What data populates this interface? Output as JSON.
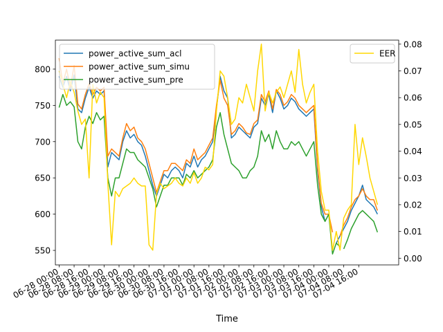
{
  "chart_data": {
    "type": "line",
    "xlabel": "Time",
    "x_ticks": [
      "06-28 00:00",
      "06-28 08:00",
      "06-28 16:00",
      "06-29 00:00",
      "06-29 08:00",
      "06-29 16:00",
      "06-30 00:00",
      "06-30 08:00",
      "06-30 16:00",
      "07-01 00:00",
      "07-01 08:00",
      "07-01 16:00",
      "07-02 00:00",
      "07-02 08:00",
      "07-02 16:00",
      "07-03 00:00",
      "07-03 08:00",
      "07-03 16:00",
      "07-04 00:00",
      "07-04 08:00",
      "07-04 16:00"
    ],
    "x_tick_labels": [
      "06-28 00:00",
      "06-28 08:00",
      "06-28 16:00",
      "06-29 00:00",
      "06-29 08:00",
      "06-29 16:00",
      "06-30 00:00",
      "06-30 08:00",
      "06-30 16:00",
      "07-01 00:00",
      "07-01 08:00",
      "07-01 16:00",
      "07-02 00:00",
      "07-02 08:00",
      "07-02 16:00",
      "07-03 00:00",
      "07-03 08:00",
      "07-03 16:00",
      "07-04 00:00",
      "07-04 08:00",
      "07-04 16:00"
    ],
    "x_range": [
      "06-27 22:00",
      "07-05 13:20"
    ],
    "left_axis": {
      "ylim": [
        530,
        840
      ],
      "ticks": [
        550,
        600,
        650,
        700,
        750,
        800
      ]
    },
    "right_axis": {
      "ylim": [
        -0.0025,
        0.0815
      ],
      "ticks": [
        0.0,
        0.01,
        0.02,
        0.03,
        0.04,
        0.05,
        0.06,
        0.07,
        0.08
      ],
      "tick_labels": [
        "0.00",
        "0.01",
        "0.02",
        "0.03",
        "0.04",
        "0.05",
        "0.06",
        "0.07",
        "0.08"
      ]
    },
    "grid": false,
    "legend_left": {
      "placement": "top-left",
      "entries": [
        "power_active_sum_acl",
        "power_active_sum_simu",
        "power_active_sum_pre"
      ]
    },
    "legend_right": {
      "placement": "top-right",
      "entries": [
        "EER"
      ]
    },
    "series": [
      {
        "name": "power_active_sum_acl",
        "color": "#1f77b4",
        "axis": "left",
        "segments": [
          {
            "x": [
              "06-28 00:00",
              "06-28 02:00",
              "06-28 04:00",
              "06-28 06:00",
              "06-28 08:00",
              "06-28 10:00",
              "06-28 12:00",
              "06-28 14:00",
              "06-28 16:00",
              "06-28 18:00",
              "06-28 20:00",
              "06-28 22:00",
              "06-29 00:00",
              "06-29 02:00",
              "06-29 04:00",
              "06-29 06:00",
              "06-29 08:00",
              "06-29 10:00",
              "06-29 12:00",
              "06-29 14:00",
              "06-29 16:00",
              "06-29 18:00",
              "06-29 20:00",
              "06-29 22:00",
              "06-30 00:00",
              "06-30 02:00",
              "06-30 04:00",
              "06-30 06:00",
              "06-30 08:00",
              "06-30 10:00",
              "06-30 12:00",
              "06-30 14:00",
              "06-30 16:00",
              "06-30 18:00",
              "06-30 20:00",
              "06-30 22:00",
              "07-01 00:00",
              "07-01 02:00",
              "07-01 04:00",
              "07-01 06:00",
              "07-01 08:00",
              "07-01 10:00",
              "07-01 12:00",
              "07-01 14:00",
              "07-01 16:00",
              "07-01 18:00",
              "07-01 20:00",
              "07-01 22:00",
              "07-02 00:00",
              "07-02 02:00",
              "07-02 04:00",
              "07-02 06:00",
              "07-02 08:00",
              "07-02 10:00",
              "07-02 12:00",
              "07-02 14:00",
              "07-02 16:00",
              "07-02 18:00",
              "07-02 20:00",
              "07-02 22:00",
              "07-03 00:00",
              "07-03 02:00",
              "07-03 04:00",
              "07-03 06:00",
              "07-03 08:00",
              "07-03 10:00",
              "07-03 12:00",
              "07-03 14:00",
              "07-03 16:00",
              "07-03 18:00",
              "07-03 20:00",
              "07-03 22:00"
            ],
            "y": [
              790,
              775,
              790,
              770,
              792,
              745,
              740,
              760,
              775,
              760,
              770,
              765,
              770,
              665,
              685,
              680,
              675,
              700,
              715,
              705,
              710,
              700,
              695,
              680,
              660,
              640,
              625,
              640,
              655,
              650,
              660,
              665,
              660,
              650,
              670,
              665,
              680,
              665,
              675,
              680,
              690,
              700,
              745,
              790,
              770,
              760,
              705,
              710,
              720,
              715,
              710,
              705,
              720,
              725,
              760,
              750,
              765,
              740,
              770,
              760,
              745,
              750,
              760,
              755,
              745,
              740,
              735,
              740,
              745,
              660,
              610,
              590
            ]
          },
          {
            "x": [
              "07-04 04:00",
              "07-04 06:00",
              "07-04 08:00",
              "07-04 10:00",
              "07-04 12:00",
              "07-04 14:00",
              "07-04 16:00",
              "07-04 18:00",
              "07-04 20:00",
              "07-04 22:00",
              "07-05 00:00",
              "07-05 02:00"
            ],
            "y": [
              560,
              570,
              580,
              590,
              605,
              615,
              625,
              640,
              620,
              615,
              610,
              600
            ]
          }
        ]
      },
      {
        "name": "power_active_sum_simu",
        "color": "#ff7f0e",
        "axis": "left",
        "segments": [
          {
            "x": [
              "06-28 00:00",
              "06-28 02:00",
              "06-28 04:00",
              "06-28 06:00",
              "06-28 08:00",
              "06-28 10:00",
              "06-28 12:00",
              "06-28 14:00",
              "06-28 16:00",
              "06-28 18:00",
              "06-28 20:00",
              "06-28 22:00",
              "06-29 00:00",
              "06-29 02:00",
              "06-29 04:00",
              "06-29 06:00",
              "06-29 08:00",
              "06-29 10:00",
              "06-29 12:00",
              "06-29 14:00",
              "06-29 16:00",
              "06-29 18:00",
              "06-29 20:00",
              "06-29 22:00",
              "06-30 00:00",
              "06-30 02:00",
              "06-30 04:00",
              "06-30 06:00",
              "06-30 08:00",
              "06-30 10:00",
              "06-30 12:00",
              "06-30 14:00",
              "06-30 16:00",
              "06-30 18:00",
              "06-30 20:00",
              "06-30 22:00",
              "07-01 00:00",
              "07-01 02:00",
              "07-01 04:00",
              "07-01 06:00",
              "07-01 08:00",
              "07-01 10:00",
              "07-01 12:00",
              "07-01 14:00",
              "07-01 16:00",
              "07-01 18:00",
              "07-01 20:00",
              "07-01 22:00",
              "07-02 00:00",
              "07-02 02:00",
              "07-02 04:00",
              "07-02 06:00",
              "07-02 08:00",
              "07-02 10:00",
              "07-02 12:00",
              "07-02 14:00",
              "07-02 16:00",
              "07-02 18:00",
              "07-02 20:00",
              "07-02 22:00",
              "07-03 00:00",
              "07-03 02:00",
              "07-03 04:00",
              "07-03 06:00",
              "07-03 08:00",
              "07-03 10:00",
              "07-03 12:00",
              "07-03 14:00",
              "07-03 16:00",
              "07-03 18:00",
              "07-03 20:00",
              "07-03 22:00",
              "07-04 00:00",
              "07-04 02:00"
            ],
            "y": [
              815,
              780,
              800,
              775,
              805,
              752,
              745,
              765,
              780,
              765,
              775,
              770,
              775,
              680,
              690,
              685,
              680,
              705,
              725,
              715,
              720,
              705,
              700,
              690,
              670,
              650,
              630,
              645,
              660,
              660,
              670,
              670,
              665,
              660,
              675,
              670,
              690,
              675,
              680,
              685,
              695,
              705,
              750,
              785,
              760,
              750,
              710,
              715,
              725,
              720,
              712,
              710,
              725,
              730,
              765,
              755,
              770,
              745,
              772,
              765,
              750,
              755,
              765,
              760,
              750,
              745,
              740,
              745,
              750,
              665,
              615,
              600,
              600,
              575
            ]
          },
          {
            "x": [
              "07-04 06:00",
              "07-04 08:00",
              "07-04 10:00",
              "07-04 12:00",
              "07-04 14:00",
              "07-04 16:00",
              "07-04 18:00",
              "07-04 20:00",
              "07-04 22:00",
              "07-05 00:00",
              "07-05 02:00"
            ],
            "y": [
              570,
              585,
              595,
              610,
              620,
              625,
              635,
              625,
              620,
              620,
              605
            ]
          }
        ]
      },
      {
        "name": "power_active_sum_pre",
        "color": "#2ca02c",
        "axis": "left",
        "segments": [
          {
            "x": [
              "06-28 00:00",
              "06-28 02:00",
              "06-28 04:00",
              "06-28 06:00",
              "06-28 08:00",
              "06-28 10:00",
              "06-28 12:00",
              "06-28 14:00",
              "06-28 16:00",
              "06-28 18:00",
              "06-28 20:00",
              "06-28 22:00",
              "06-29 00:00",
              "06-29 02:00",
              "06-29 04:00",
              "06-29 06:00",
              "06-29 08:00",
              "06-29 10:00",
              "06-29 12:00",
              "06-29 14:00",
              "06-29 16:00",
              "06-29 18:00",
              "06-29 20:00",
              "06-29 22:00",
              "06-30 00:00",
              "06-30 02:00",
              "06-30 04:00",
              "06-30 06:00",
              "06-30 08:00",
              "06-30 10:00",
              "06-30 12:00",
              "06-30 14:00",
              "06-30 16:00",
              "06-30 18:00",
              "06-30 20:00",
              "06-30 22:00",
              "07-01 00:00",
              "07-01 02:00",
              "07-01 04:00",
              "07-01 06:00",
              "07-01 08:00",
              "07-01 10:00",
              "07-01 12:00",
              "07-01 14:00",
              "07-01 16:00",
              "07-01 18:00",
              "07-01 20:00",
              "07-01 22:00",
              "07-02 00:00",
              "07-02 02:00",
              "07-02 04:00",
              "07-02 06:00",
              "07-02 08:00",
              "07-02 10:00",
              "07-02 12:00",
              "07-02 14:00",
              "07-02 16:00",
              "07-02 18:00",
              "07-02 20:00",
              "07-02 22:00",
              "07-03 00:00",
              "07-03 02:00",
              "07-03 04:00",
              "07-03 06:00",
              "07-03 08:00",
              "07-03 10:00",
              "07-03 12:00",
              "07-03 14:00",
              "07-03 16:00",
              "07-03 18:00",
              "07-03 20:00",
              "07-03 22:00",
              "07-04 00:00",
              "07-04 02:00",
              "07-04 04:00",
              "07-04 06:00"
            ],
            "y": [
              747,
              765,
              750,
              755,
              748,
              700,
              690,
              720,
              735,
              725,
              740,
              730,
              735,
              650,
              625,
              650,
              650,
              670,
              690,
              685,
              685,
              675,
              670,
              665,
              650,
              635,
              610,
              625,
              640,
              640,
              650,
              650,
              650,
              640,
              655,
              650,
              660,
              650,
              655,
              660,
              665,
              675,
              720,
              740,
              710,
              690,
              670,
              665,
              660,
              650,
              650,
              660,
              665,
              680,
              715,
              700,
              710,
              690,
              715,
              700,
              690,
              690,
              700,
              695,
              700,
              690,
              680,
              690,
              700,
              640,
              600,
              590,
              600,
              545,
              560,
              555
            ]
          },
          {
            "x": [
              "07-04 08:00",
              "07-04 10:00",
              "07-04 12:00",
              "07-04 14:00",
              "07-04 16:00",
              "07-04 18:00",
              "07-04 20:00",
              "07-04 22:00",
              "07-05 00:00",
              "07-05 02:00"
            ],
            "y": [
              552,
              565,
              580,
              590,
              600,
              605,
              600,
              595,
              590,
              575
            ]
          }
        ]
      },
      {
        "name": "EER",
        "color": "#ffd700",
        "axis": "right",
        "segments": [
          {
            "x": [
              "06-28 00:00",
              "06-28 02:00",
              "06-28 04:00",
              "06-28 06:00",
              "06-28 08:00",
              "06-28 10:00",
              "06-28 12:00",
              "06-28 14:00",
              "06-28 16:00",
              "06-28 18:00",
              "06-28 20:00",
              "06-28 22:00",
              "06-29 00:00",
              "06-29 02:00",
              "06-29 04:00",
              "06-29 06:00",
              "06-29 08:00",
              "06-29 10:00",
              "06-29 12:00",
              "06-29 14:00",
              "06-29 16:00",
              "06-29 18:00",
              "06-29 20:00",
              "06-29 22:00",
              "06-30 00:00",
              "06-30 02:00",
              "06-30 04:00",
              "06-30 06:00",
              "06-30 08:00",
              "06-30 10:00",
              "06-30 12:00",
              "06-30 14:00",
              "06-30 16:00",
              "06-30 18:00",
              "06-30 20:00",
              "06-30 22:00",
              "07-01 00:00",
              "07-01 02:00",
              "07-01 04:00",
              "07-01 06:00",
              "07-01 08:00",
              "07-01 10:00",
              "07-01 12:00",
              "07-01 14:00",
              "07-01 16:00",
              "07-01 18:00",
              "07-01 20:00",
              "07-01 22:00",
              "07-02 00:00",
              "07-02 02:00",
              "07-02 04:00",
              "07-02 06:00",
              "07-02 08:00",
              "07-02 10:00",
              "07-02 12:00",
              "07-02 14:00",
              "07-02 16:00",
              "07-02 18:00",
              "07-02 20:00",
              "07-02 22:00",
              "07-03 00:00",
              "07-03 02:00",
              "07-03 04:00",
              "07-03 06:00",
              "07-03 08:00",
              "07-03 10:00",
              "07-03 12:00",
              "07-03 14:00",
              "07-03 16:00",
              "07-03 18:00",
              "07-03 20:00",
              "07-03 22:00",
              "07-04 00:00",
              "07-04 02:00",
              "07-04 04:00",
              "07-04 06:00",
              "07-04 08:00",
              "07-04 10:00",
              "07-04 12:00",
              "07-04 14:00",
              "07-04 16:00",
              "07-04 18:00",
              "07-04 20:00",
              "07-04 22:00",
              "07-05 00:00",
              "07-05 02:00"
            ],
            "y": [
              0.07,
              0.065,
              0.06,
              0.066,
              0.062,
              0.055,
              0.05,
              0.052,
              0.03,
              0.065,
              0.058,
              0.062,
              0.06,
              0.028,
              0.005,
              0.025,
              0.023,
              0.026,
              0.027,
              0.028,
              0.03,
              0.028,
              0.027,
              0.027,
              0.005,
              0.003,
              0.024,
              0.028,
              0.026,
              0.027,
              0.028,
              0.03,
              0.028,
              0.027,
              0.03,
              0.028,
              0.032,
              0.028,
              0.03,
              0.034,
              0.033,
              0.035,
              0.055,
              0.07,
              0.068,
              0.06,
              0.05,
              0.052,
              0.06,
              0.058,
              0.065,
              0.06,
              0.055,
              0.07,
              0.08,
              0.055,
              0.062,
              0.058,
              0.062,
              0.064,
              0.06,
              0.065,
              0.07,
              0.062,
              0.078,
              0.065,
              0.058,
              0.062,
              0.065,
              0.04,
              0.025,
              0.018,
              0.018,
              0.003,
              0.01,
              0.003,
              0.015,
              0.018,
              0.02,
              0.05,
              0.035,
              0.045,
              0.038,
              0.03,
              0.025,
              0.02
            ]
          }
        ]
      }
    ]
  }
}
